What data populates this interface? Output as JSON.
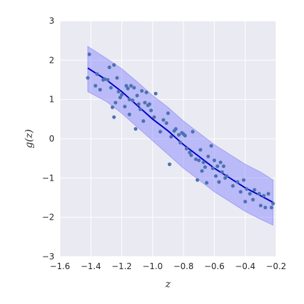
{
  "chart_data": {
    "type": "scatter",
    "title": "",
    "xlabel": "z",
    "ylabel": "g(z)",
    "xlim": [
      -1.6,
      -0.2
    ],
    "ylim": [
      -3,
      3
    ],
    "xticks": [
      -1.6,
      -1.4,
      -1.2,
      -1.0,
      -0.8,
      -0.6,
      -0.4,
      -0.2
    ],
    "yticks": [
      -3,
      -2,
      -1,
      0,
      1,
      2,
      3
    ],
    "xtick_labels": [
      "−1.6",
      "−1.4",
      "−1.2",
      "−1.0",
      "−0.8",
      "−0.6",
      "−0.4",
      "−0.2"
    ],
    "ytick_labels": [
      "−3",
      "−2",
      "−1",
      "0",
      "1",
      "2",
      "3"
    ],
    "grid": true,
    "colors": {
      "background": "#eaeaf2",
      "grid": "#ffffff",
      "points": "#4c72b0",
      "fit_line": "#0000cc",
      "band": "#8080ff"
    },
    "fit_line": {
      "x": [
        -1.42,
        -1.3,
        -1.2,
        -1.1,
        -1.0,
        -0.9,
        -0.8,
        -0.7,
        -0.6,
        -0.5,
        -0.4,
        -0.3,
        -0.22
      ],
      "y": [
        1.8,
        1.5,
        1.2,
        0.85,
        0.5,
        0.2,
        -0.15,
        -0.45,
        -0.75,
        -1.0,
        -1.25,
        -1.45,
        -1.62
      ]
    },
    "band": {
      "x": [
        -1.42,
        -1.3,
        -1.2,
        -1.1,
        -1.0,
        -0.9,
        -0.8,
        -0.7,
        -0.6,
        -0.5,
        -0.4,
        -0.3,
        -0.22
      ],
      "upper": [
        2.35,
        2.05,
        1.78,
        1.45,
        1.1,
        0.8,
        0.45,
        0.15,
        -0.15,
        -0.4,
        -0.65,
        -0.85,
        -1.05
      ],
      "lower": [
        1.2,
        0.95,
        0.65,
        0.3,
        -0.05,
        -0.4,
        -0.75,
        -1.05,
        -1.35,
        -1.6,
        -1.85,
        -2.05,
        -2.2
      ]
    },
    "points": {
      "x": [
        -1.42,
        -1.41,
        -1.37,
        -1.36,
        -1.34,
        -1.32,
        -1.31,
        -1.29,
        -1.28,
        -1.27,
        -1.26,
        -1.25,
        -1.25,
        -1.24,
        -1.23,
        -1.22,
        -1.21,
        -1.2,
        -1.18,
        -1.17,
        -1.16,
        -1.15,
        -1.15,
        -1.14,
        -1.13,
        -1.12,
        -1.11,
        -1.1,
        -1.09,
        -1.08,
        -1.07,
        -1.06,
        -1.05,
        -1.04,
        -1.03,
        -1.02,
        -1.01,
        -0.99,
        -0.98,
        -0.95,
        -0.93,
        -0.91,
        -0.9,
        -0.89,
        -0.88,
        -0.86,
        -0.85,
        -0.83,
        -0.82,
        -0.81,
        -0.8,
        -0.79,
        -0.78,
        -0.76,
        -0.75,
        -0.74,
        -0.72,
        -0.71,
        -0.7,
        -0.69,
        -0.68,
        -0.67,
        -0.66,
        -0.65,
        -0.64,
        -0.62,
        -0.61,
        -0.6,
        -0.59,
        -0.58,
        -0.57,
        -0.56,
        -0.55,
        -0.54,
        -0.53,
        -0.52,
        -0.48,
        -0.45,
        -0.43,
        -0.41,
        -0.4,
        -0.39,
        -0.37,
        -0.35,
        -0.34,
        -0.31,
        -0.3,
        -0.28,
        -0.27,
        -0.25,
        -0.23,
        -0.22
      ],
      "y": [
        1.55,
        2.15,
        1.35,
        1.65,
        1.25,
        1.5,
        1.52,
        1.5,
        1.82,
        1.3,
        0.8,
        1.88,
        0.55,
        0.92,
        1.55,
        1.2,
        1.05,
        1.12,
        0.82,
        1.35,
        1.28,
        1.0,
        0.62,
        1.35,
        0.98,
        1.3,
        0.25,
        1.1,
        0.88,
        0.75,
        1.22,
        0.45,
        0.92,
        1.18,
        0.85,
        0.88,
        0.72,
        0.55,
        1.15,
        0.18,
        0.48,
        0.4,
        0.65,
        -0.65,
        0.05,
        0.2,
        0.25,
        0.1,
        -0.1,
        0.15,
        0.12,
        0.08,
        -0.25,
        -0.35,
        -0.42,
        0.18,
        -0.52,
        -1.05,
        -0.55,
        -0.28,
        -0.82,
        -0.6,
        -0.72,
        -1.12,
        -0.45,
        -0.18,
        -0.75,
        -0.55,
        -0.95,
        -0.7,
        -1.1,
        -0.6,
        -0.85,
        -0.7,
        -1.0,
        -0.95,
        -1.2,
        -1.1,
        -1.35,
        -1.05,
        -1.6,
        -1.28,
        -1.4,
        -1.55,
        -1.3,
        -1.4,
        -1.7,
        -1.45,
        -1.75,
        -1.4,
        -1.75,
        -1.65
      ]
    }
  }
}
